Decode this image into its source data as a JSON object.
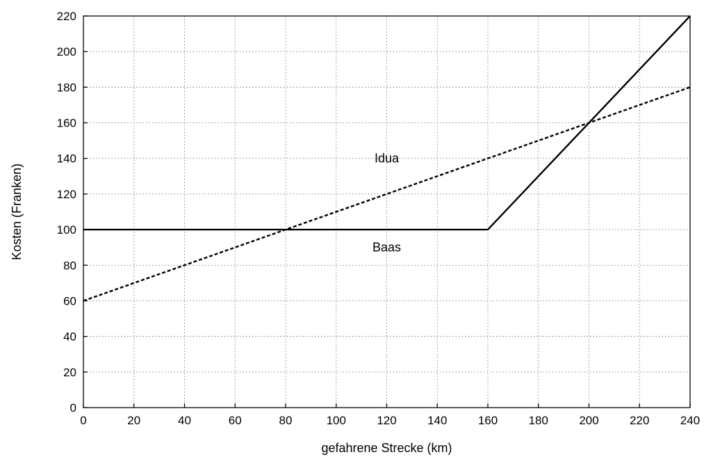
{
  "chart_data": {
    "type": "line",
    "xlabel": "gefahrene Strecke (km)",
    "ylabel": "Kosten (Franken)",
    "xlim": [
      0,
      240
    ],
    "ylim": [
      0,
      220
    ],
    "xticks": [
      0,
      20,
      40,
      60,
      80,
      100,
      120,
      140,
      160,
      180,
      200,
      220,
      240
    ],
    "yticks": [
      0,
      20,
      40,
      60,
      80,
      100,
      120,
      140,
      160,
      180,
      200,
      220
    ],
    "grid": true,
    "legend": "none",
    "series": [
      {
        "name": "Idua",
        "style": "dashed",
        "color": "#000000",
        "x": [
          0,
          240
        ],
        "y": [
          60,
          180
        ],
        "label_at": [
          120,
          140
        ]
      },
      {
        "name": "Baas",
        "style": "solid",
        "color": "#000000",
        "x": [
          0,
          160,
          240
        ],
        "y": [
          100,
          100,
          220
        ],
        "label_at": [
          120,
          90
        ]
      }
    ]
  }
}
